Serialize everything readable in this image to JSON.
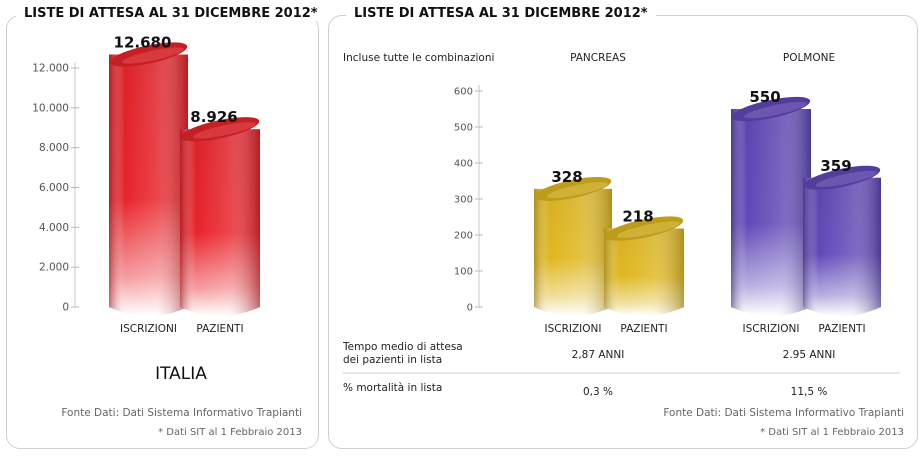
{
  "left_panel": {
    "title": "LISTE DI ATTESA AL 31 DICEMBRE 2012*",
    "region_label": "ITALIA",
    "source": "Fonte Dati: Dati Sistema Informativo Trapianti",
    "note": "* Dati SIT al 1 Febbraio 2013"
  },
  "right_panel": {
    "title": "LISTE DI ATTESA AL 31 DICEMBRE 2012*",
    "subtitle": "Incluse tutte le combinazioni",
    "source": "Fonte Dati: Dati Sistema Informativo Trapianti",
    "note": "* Dati SIT al 1 Febbraio 2013",
    "table": {
      "wait_label_line1": "Tempo medio di attesa",
      "wait_label_line2": "dei pazienti in lista",
      "mortality_label": "% mortalità in lista",
      "pancreas_wait": "2,87 ANNI",
      "polmone_wait": "2.95 ANNI",
      "pancreas_mortality": "0,3 %",
      "polmone_mortality": "11,5 %"
    }
  },
  "colors": {
    "red": "#e8232a",
    "gold": "#e0b820",
    "purple": "#6148b8"
  },
  "chart_data": [
    {
      "type": "bar",
      "categories": [
        "ISCRIZIONI",
        "PAZIENTI"
      ],
      "value_labels": [
        "12.680",
        "8.926"
      ],
      "values": [
        12680,
        8926
      ],
      "ylim": [
        0,
        12000
      ],
      "yticks": [
        0,
        2000,
        4000,
        6000,
        8000,
        10000,
        12000
      ],
      "ytick_labels": [
        "0",
        "2.000",
        "4.000",
        "6.000",
        "8.000",
        "10.000",
        "12.000"
      ],
      "title": "",
      "xlabel": "ITALIA",
      "ylabel": ""
    },
    {
      "type": "bar",
      "groups": [
        "PANCREAS",
        "POLMONE"
      ],
      "categories": [
        "ISCRIZIONI",
        "PAZIENTI"
      ],
      "series": [
        {
          "group": "PANCREAS",
          "values": [
            328,
            218
          ],
          "value_labels": [
            "328",
            "218"
          ]
        },
        {
          "group": "POLMONE",
          "values": [
            550,
            359
          ],
          "value_labels": [
            "550",
            "359"
          ]
        }
      ],
      "ylim": [
        0,
        600
      ],
      "yticks": [
        0,
        100,
        200,
        300,
        400,
        500,
        600
      ],
      "ytick_labels": [
        "0",
        "100",
        "200",
        "300",
        "400",
        "500",
        "600"
      ],
      "title": "",
      "xlabel": "",
      "ylabel": ""
    }
  ]
}
